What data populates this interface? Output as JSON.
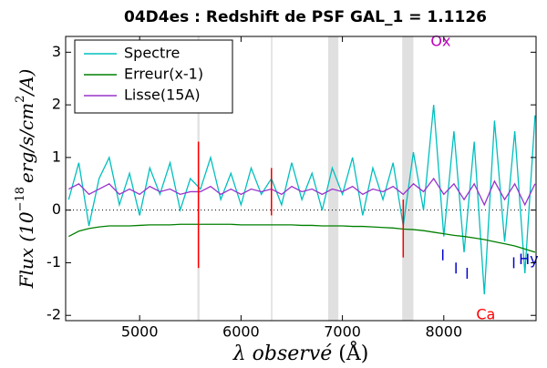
{
  "chart_data": {
    "type": "line",
    "title": "04D4es : Redshift de PSF GAL_1 = 1.1126",
    "xlabel": {
      "pre": "λ ",
      "text": "observé",
      "unit": " (Å)"
    },
    "ylabel": {
      "text": "Flux (10",
      "exp": "−18",
      "unit": "erg/s/cm",
      "unit_exp": "2",
      "end": "/A)"
    },
    "x": [
      4300,
      4400,
      4500,
      4600,
      4700,
      4800,
      4900,
      5000,
      5100,
      5200,
      5300,
      5400,
      5500,
      5600,
      5700,
      5800,
      5900,
      6000,
      6100,
      6200,
      6300,
      6400,
      6500,
      6600,
      6700,
      6800,
      6900,
      7000,
      7100,
      7200,
      7300,
      7400,
      7500,
      7600,
      7700,
      7800,
      7900,
      8000,
      8100,
      8200,
      8300,
      8400,
      8500,
      8600,
      8700,
      8800,
      8900
    ],
    "series": [
      {
        "name": "Spectre",
        "color": "#00bfbf",
        "values": [
          0.2,
          0.9,
          -0.3,
          0.6,
          1.0,
          0.1,
          0.7,
          -0.1,
          0.8,
          0.3,
          0.9,
          0.0,
          0.6,
          0.4,
          1.0,
          0.2,
          0.7,
          0.1,
          0.8,
          0.3,
          0.6,
          0.1,
          0.9,
          0.2,
          0.7,
          0.0,
          0.8,
          0.3,
          1.0,
          -0.1,
          0.8,
          0.2,
          0.9,
          -0.3,
          1.1,
          0.0,
          2.0,
          -0.5,
          1.5,
          -0.8,
          1.3,
          -1.6,
          1.7,
          -0.6,
          1.5,
          -1.2,
          1.8
        ]
      },
      {
        "name": "Erreur(x-1)",
        "color": "#008000",
        "values": [
          -0.5,
          -0.4,
          -0.35,
          -0.32,
          -0.3,
          -0.3,
          -0.3,
          -0.29,
          -0.28,
          -0.28,
          -0.28,
          -0.27,
          -0.27,
          -0.27,
          -0.27,
          -0.27,
          -0.27,
          -0.28,
          -0.28,
          -0.28,
          -0.28,
          -0.28,
          -0.28,
          -0.29,
          -0.29,
          -0.3,
          -0.3,
          -0.3,
          -0.31,
          -0.31,
          -0.32,
          -0.33,
          -0.34,
          -0.36,
          -0.37,
          -0.39,
          -0.42,
          -0.45,
          -0.48,
          -0.5,
          -0.53,
          -0.56,
          -0.6,
          -0.64,
          -0.68,
          -0.74,
          -0.8
        ]
      },
      {
        "name": "Lisse(15A)",
        "color": "#9933cc",
        "values": [
          0.4,
          0.5,
          0.3,
          0.4,
          0.5,
          0.3,
          0.4,
          0.3,
          0.45,
          0.35,
          0.4,
          0.3,
          0.35,
          0.35,
          0.45,
          0.3,
          0.4,
          0.3,
          0.4,
          0.35,
          0.4,
          0.3,
          0.45,
          0.35,
          0.4,
          0.3,
          0.4,
          0.35,
          0.45,
          0.3,
          0.4,
          0.35,
          0.45,
          0.3,
          0.5,
          0.35,
          0.6,
          0.3,
          0.5,
          0.2,
          0.5,
          0.1,
          0.55,
          0.2,
          0.5,
          0.1,
          0.5
        ]
      }
    ],
    "xlim": [
      4270,
      8910
    ],
    "ylim": [
      -2.1,
      3.3
    ],
    "xticks": [
      5000,
      6000,
      7000,
      8000
    ],
    "yticks": [
      -2,
      -1,
      0,
      1,
      2,
      3
    ],
    "zero_line": 0,
    "bands": [
      [
        5570,
        5590
      ],
      [
        6295,
        6310
      ],
      [
        6860,
        6960
      ],
      [
        7590,
        7700
      ]
    ],
    "sky_lines": [
      {
        "x": 5580,
        "y": [
          -1.1,
          1.3
        ]
      },
      {
        "x": 6300,
        "y": [
          -0.1,
          0.8
        ]
      },
      {
        "x": 7600,
        "y": [
          -0.9,
          0.2
        ]
      }
    ],
    "line_ticks": [
      {
        "x": 7990,
        "y": -0.85
      },
      {
        "x": 8120,
        "y": -1.1
      },
      {
        "x": 8230,
        "y": -1.2
      },
      {
        "x": 8690,
        "y": -1.0
      }
    ],
    "annotations": [
      {
        "text": "Ox",
        "x": 7870,
        "y": 3.2,
        "color": "#bf00bf"
      },
      {
        "text": "Ca",
        "x": 8320,
        "y": -2.0,
        "color": "#ff0000"
      },
      {
        "text": "Hy",
        "x": 8740,
        "y": -0.95,
        "color": "#0000cc"
      }
    ],
    "legend": "upper left"
  }
}
